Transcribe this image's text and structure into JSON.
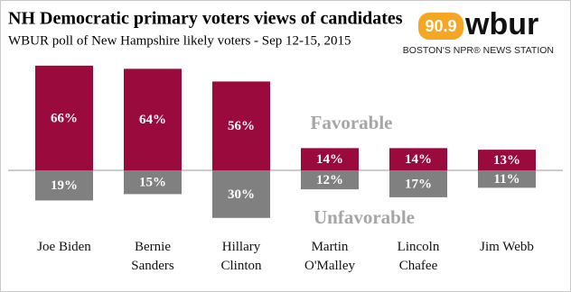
{
  "chart_data": {
    "type": "diverging-bar",
    "title": "NH Democratic primary voters views of candidates",
    "subtitle": "WBUR poll of New Hampshire likely voters - Sep 12-15, 2015",
    "categories": [
      "Joe Biden",
      "Bernie Sanders",
      "Hillary Clinton",
      "Martin O'Malley",
      "Lincoln Chafee",
      "Jim Webb"
    ],
    "series": [
      {
        "name": "Favorable",
        "color": "#9b0a3c",
        "values": [
          66,
          64,
          56,
          14,
          14,
          13
        ],
        "value_labels": [
          "66%",
          "64%",
          "56%",
          "14%",
          "14%",
          "13%"
        ]
      },
      {
        "name": "Unfavorable",
        "color": "#808080",
        "values": [
          19,
          15,
          30,
          12,
          17,
          11
        ],
        "value_labels": [
          "19%",
          "15%",
          "30%",
          "12%",
          "17%",
          "11%"
        ]
      }
    ]
  },
  "branding": {
    "frequency": "90.9",
    "station": "wbur",
    "tagline": "BOSTON'S NPR® NEWS STATION"
  }
}
